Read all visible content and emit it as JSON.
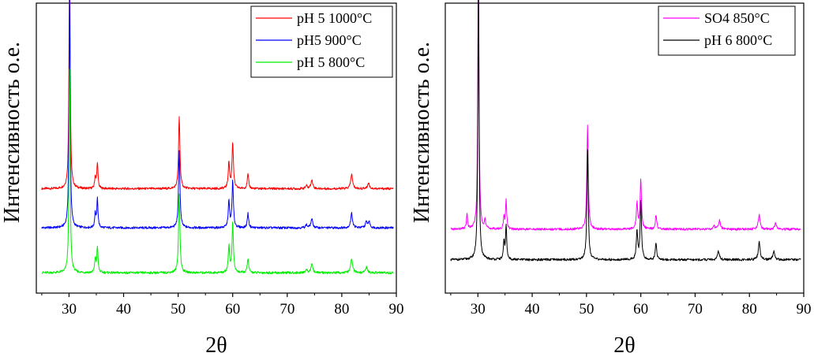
{
  "chart_data": [
    {
      "type": "line",
      "xlabel": "2θ",
      "ylabel": "Интенсивность о.е.",
      "xlim": [
        24,
        90
      ],
      "xticks": [
        30,
        40,
        50,
        60,
        70,
        80,
        90
      ],
      "ylim": [
        0,
        1
      ],
      "legend_position": "top-right",
      "series": [
        {
          "name": "pH 5 1000°C",
          "color": "#ff0000",
          "baseline": 0.36,
          "noise": 0.004,
          "peaks": [
            [
              30.1,
              0.82,
              0.25
            ],
            [
              34.8,
              0.04,
              0.25
            ],
            [
              35.2,
              0.09,
              0.25
            ],
            [
              50.2,
              0.25,
              0.3
            ],
            [
              59.3,
              0.09,
              0.3
            ],
            [
              60.0,
              0.16,
              0.3
            ],
            [
              62.8,
              0.05,
              0.3
            ],
            [
              73.5,
              0.01,
              0.4
            ],
            [
              74.5,
              0.03,
              0.4
            ],
            [
              81.8,
              0.05,
              0.4
            ],
            [
              84.9,
              0.02,
              0.4
            ]
          ]
        },
        {
          "name": "pH5 900°C",
          "color": "#0000ff",
          "baseline": 0.225,
          "noise": 0.004,
          "peaks": [
            [
              30.1,
              0.81,
              0.25
            ],
            [
              34.8,
              0.05,
              0.25
            ],
            [
              35.2,
              0.1,
              0.25
            ],
            [
              50.2,
              0.27,
              0.3
            ],
            [
              59.3,
              0.09,
              0.3
            ],
            [
              60.0,
              0.16,
              0.3
            ],
            [
              62.8,
              0.05,
              0.3
            ],
            [
              73.5,
              0.01,
              0.4
            ],
            [
              74.5,
              0.03,
              0.4
            ],
            [
              81.8,
              0.05,
              0.4
            ],
            [
              84.5,
              0.02,
              0.4
            ],
            [
              85.0,
              0.02,
              0.4
            ]
          ]
        },
        {
          "name": "pH 5 800°C",
          "color": "#00ee00",
          "baseline": 0.07,
          "noise": 0.004,
          "peaks": [
            [
              30.1,
              0.7,
              0.25
            ],
            [
              34.8,
              0.05,
              0.25
            ],
            [
              35.2,
              0.09,
              0.25
            ],
            [
              50.2,
              0.27,
              0.3
            ],
            [
              59.3,
              0.09,
              0.3
            ],
            [
              60.0,
              0.17,
              0.3
            ],
            [
              62.8,
              0.05,
              0.3
            ],
            [
              73.5,
              0.01,
              0.4
            ],
            [
              74.5,
              0.03,
              0.4
            ],
            [
              81.8,
              0.05,
              0.4
            ],
            [
              84.5,
              0.02,
              0.4
            ]
          ]
        }
      ]
    },
    {
      "type": "line",
      "xlabel": "2θ",
      "ylabel": "Интенсивность о.е.",
      "xlim": [
        24,
        90
      ],
      "xticks": [
        30,
        40,
        50,
        60,
        70,
        80,
        90
      ],
      "ylim": [
        0,
        1
      ],
      "legend_position": "top-right",
      "series": [
        {
          "name": "SO4 850°C",
          "color": "#ff00ff",
          "baseline": 0.22,
          "noise": 0.004,
          "peaks": [
            [
              28.0,
              0.05,
              0.25
            ],
            [
              30.1,
              0.95,
              0.25
            ],
            [
              31.3,
              0.03,
              0.25
            ],
            [
              34.8,
              0.04,
              0.25
            ],
            [
              35.2,
              0.1,
              0.25
            ],
            [
              50.2,
              0.36,
              0.3
            ],
            [
              59.3,
              0.09,
              0.3
            ],
            [
              60.0,
              0.17,
              0.3
            ],
            [
              62.8,
              0.05,
              0.3
            ],
            [
              73.5,
              0.01,
              0.4
            ],
            [
              74.5,
              0.03,
              0.4
            ],
            [
              81.8,
              0.05,
              0.4
            ],
            [
              84.8,
              0.02,
              0.4
            ]
          ]
        },
        {
          "name": "pH 6 800°C",
          "color": "#000000",
          "baseline": 0.115,
          "noise": 0.004,
          "peaks": [
            [
              30.1,
              1.0,
              0.25
            ],
            [
              34.8,
              0.06,
              0.25
            ],
            [
              35.2,
              0.12,
              0.25
            ],
            [
              50.2,
              0.38,
              0.3
            ],
            [
              59.3,
              0.1,
              0.3
            ],
            [
              60.0,
              0.2,
              0.3
            ],
            [
              62.8,
              0.06,
              0.3
            ],
            [
              74.3,
              0.03,
              0.4
            ],
            [
              81.8,
              0.06,
              0.4
            ],
            [
              84.5,
              0.03,
              0.4
            ]
          ]
        }
      ]
    }
  ]
}
